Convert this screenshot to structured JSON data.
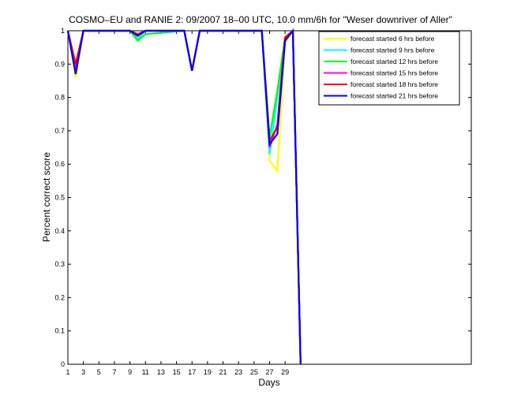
{
  "chart_data": {
    "type": "line",
    "title": "COSMO–EU and RANIE 2: 09/2007 18–00 UTC, 10.0 mm/6h for \"Weser downriver of Aller\"",
    "xlabel": "Days",
    "ylabel": "Percent correct score",
    "xlim": [
      1,
      53
    ],
    "ylim": [
      0,
      1
    ],
    "x_ticks": [
      1,
      3,
      5,
      7,
      9,
      11,
      13,
      15,
      17,
      19,
      21,
      23,
      25,
      27,
      29
    ],
    "y_ticks": [
      0,
      0.1,
      0.2,
      0.3,
      0.4,
      0.5,
      0.6,
      0.7,
      0.8,
      0.9,
      1
    ],
    "grid": false,
    "legend_position": "top-right",
    "series": [
      {
        "name": "forecast started 6 hrs before",
        "color": "#ffff00",
        "points": [
          [
            1,
            1
          ],
          [
            2,
            0.86
          ],
          [
            3,
            1
          ],
          [
            9,
            1
          ],
          [
            10,
            0.98
          ],
          [
            11,
            1
          ],
          [
            16,
            1
          ],
          [
            17,
            0.88
          ],
          [
            18,
            1
          ],
          [
            26,
            1
          ],
          [
            27,
            0.61
          ],
          [
            28,
            0.58
          ],
          [
            29,
            0.96
          ],
          [
            30,
            1
          ],
          [
            31,
            0
          ]
        ]
      },
      {
        "name": "forecast started 9 hrs before",
        "color": "#00ffff",
        "points": [
          [
            1,
            1
          ],
          [
            2,
            0.88
          ],
          [
            3,
            1
          ],
          [
            9,
            1
          ],
          [
            10,
            0.975
          ],
          [
            11,
            1
          ],
          [
            16,
            1
          ],
          [
            17,
            0.88
          ],
          [
            18,
            1
          ],
          [
            26,
            1
          ],
          [
            27,
            0.63
          ],
          [
            28,
            0.8
          ],
          [
            29,
            0.98
          ],
          [
            30,
            1
          ],
          [
            31,
            0
          ]
        ]
      },
      {
        "name": "forecast started 12 hrs before",
        "color": "#00ff00",
        "points": [
          [
            1,
            1
          ],
          [
            2,
            0.88
          ],
          [
            3,
            1
          ],
          [
            9,
            1
          ],
          [
            10,
            0.97
          ],
          [
            11,
            0.99
          ],
          [
            16,
            1
          ],
          [
            17,
            0.88
          ],
          [
            18,
            1
          ],
          [
            26,
            1
          ],
          [
            27,
            0.68
          ],
          [
            28,
            0.82
          ],
          [
            29,
            0.98
          ],
          [
            30,
            1
          ],
          [
            31,
            0
          ]
        ]
      },
      {
        "name": "forecast started 15 hrs before",
        "color": "#ff00ff",
        "points": [
          [
            1,
            1
          ],
          [
            2,
            0.89
          ],
          [
            3,
            1
          ],
          [
            9,
            1
          ],
          [
            10,
            0.985
          ],
          [
            11,
            1
          ],
          [
            16,
            1
          ],
          [
            17,
            0.88
          ],
          [
            18,
            1
          ],
          [
            26,
            1
          ],
          [
            27,
            0.65
          ],
          [
            28,
            0.72
          ],
          [
            29,
            0.98
          ],
          [
            30,
            1
          ],
          [
            31,
            0
          ]
        ]
      },
      {
        "name": "forecast started 18 hrs before",
        "color": "#ff0000",
        "points": [
          [
            1,
            1
          ],
          [
            2,
            0.9
          ],
          [
            3,
            1
          ],
          [
            9,
            1
          ],
          [
            10,
            0.99
          ],
          [
            11,
            1
          ],
          [
            16,
            1
          ],
          [
            17,
            0.88
          ],
          [
            18,
            1
          ],
          [
            26,
            1
          ],
          [
            27,
            0.67
          ],
          [
            28,
            0.71
          ],
          [
            29,
            0.98
          ],
          [
            30,
            1
          ],
          [
            31,
            0
          ]
        ]
      },
      {
        "name": "forecast started 21 hrs before",
        "color": "#0000ff",
        "points": [
          [
            1,
            1
          ],
          [
            2,
            0.87
          ],
          [
            3,
            1
          ],
          [
            9,
            1
          ],
          [
            10,
            0.985
          ],
          [
            11,
            1
          ],
          [
            16,
            1
          ],
          [
            17,
            0.88
          ],
          [
            18,
            1
          ],
          [
            26,
            1
          ],
          [
            27,
            0.66
          ],
          [
            28,
            0.69
          ],
          [
            29,
            0.97
          ],
          [
            30,
            1
          ],
          [
            31,
            0
          ]
        ]
      }
    ]
  }
}
